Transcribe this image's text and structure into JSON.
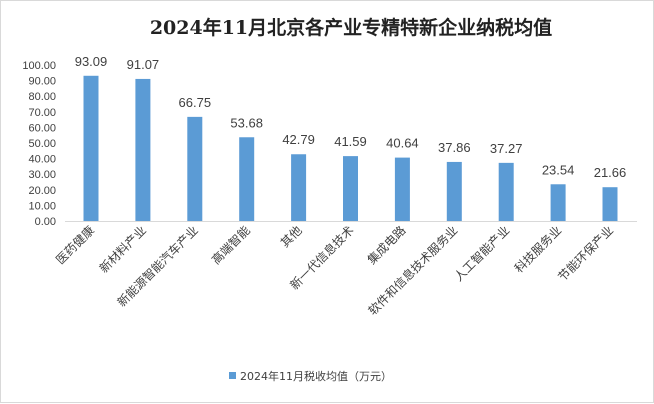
{
  "chart_data": {
    "type": "bar",
    "title": "2024年11月北京各产业专精特新企业纳税均值",
    "categories": [
      "医药健康",
      "新材料产业",
      "新能源智能汽车产业",
      "高端智能",
      "其他",
      "新一代信息技术",
      "集成电路",
      "软件和信息技术服务业",
      "人工智能产业",
      "科技服务业",
      "节能环保产业"
    ],
    "series": [
      {
        "name": "2024年11月税收均值（万元）",
        "values": [
          93.09,
          91.07,
          66.75,
          53.68,
          42.79,
          41.59,
          40.64,
          37.86,
          37.27,
          23.54,
          21.66
        ],
        "color": "#5b9bd5"
      }
    ],
    "ylim": [
      0,
      100
    ],
    "yticks": [
      "0.00",
      "10.00",
      "20.00",
      "30.00",
      "40.00",
      "50.00",
      "60.00",
      "70.00",
      "80.00",
      "90.00",
      "100.00"
    ],
    "grid": false,
    "legend": "bottom",
    "xlabel": "",
    "ylabel": ""
  }
}
